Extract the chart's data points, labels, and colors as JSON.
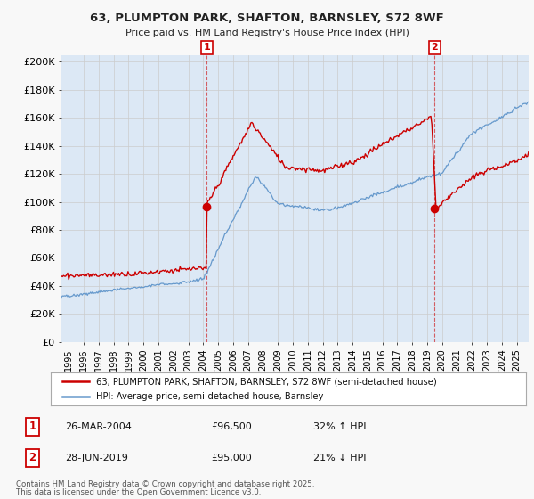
{
  "title": "63, PLUMPTON PARK, SHAFTON, BARNSLEY, S72 8WF",
  "subtitle": "Price paid vs. HM Land Registry's House Price Index (HPI)",
  "ylabel_ticks": [
    "£0",
    "£20K",
    "£40K",
    "£60K",
    "£80K",
    "£100K",
    "£120K",
    "£140K",
    "£160K",
    "£180K",
    "£200K"
  ],
  "ytick_values": [
    0,
    20000,
    40000,
    60000,
    80000,
    100000,
    120000,
    140000,
    160000,
    180000,
    200000
  ],
  "ylim": [
    0,
    205000
  ],
  "xlim_start": 1994.5,
  "xlim_end": 2025.8,
  "transaction1": {
    "date_num": 2004.23,
    "price": 96500,
    "label": "1",
    "date_str": "26-MAR-2004",
    "price_str": "£96,500",
    "pct": "32% ↑ HPI"
  },
  "transaction2": {
    "date_num": 2019.49,
    "price": 95000,
    "label": "2",
    "date_str": "28-JUN-2019",
    "price_str": "£95,000",
    "pct": "21% ↓ HPI"
  },
  "legend_line1": "63, PLUMPTON PARK, SHAFTON, BARNSLEY, S72 8WF (semi-detached house)",
  "legend_line2": "HPI: Average price, semi-detached house, Barnsley",
  "footer_line1": "Contains HM Land Registry data © Crown copyright and database right 2025.",
  "footer_line2": "This data is licensed under the Open Government Licence v3.0.",
  "red_color": "#cc0000",
  "blue_color": "#6699cc",
  "grid_color": "#cccccc",
  "background_color": "#f8f8f8",
  "plot_bg_color": "#dce8f5"
}
